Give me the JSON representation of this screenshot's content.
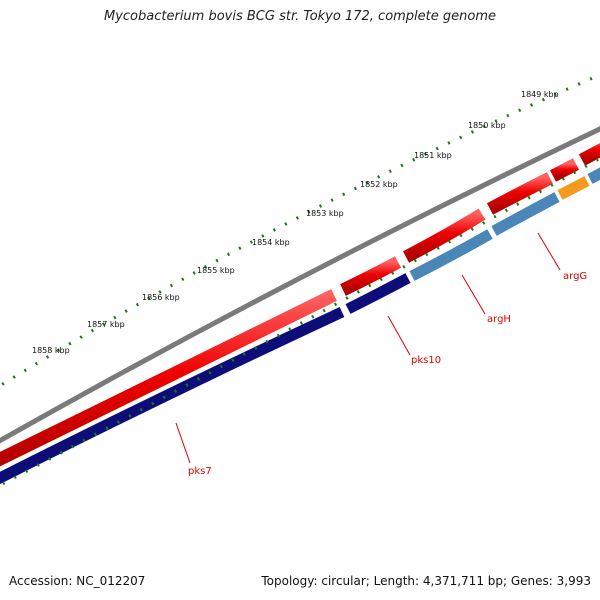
{
  "title": "Mycobacterium bovis BCG str. Tokyo 172, complete genome",
  "footer": {
    "accession": "Accession: NC_012207",
    "summary": "Topology: circular; Length: 4,371,711 bp; Genes: 3,993"
  },
  "ruler": {
    "unit": "kbp",
    "ticks": [
      "1849 kbp",
      "1850 kbp",
      "1851 kbp",
      "1852 kbp",
      "1853 kbp",
      "1854 kbp",
      "1855 kbp",
      "1856 kbp",
      "1857 kbp",
      "1858 kbp"
    ]
  },
  "genes": [
    {
      "name": "argG",
      "color": "#4a86b8"
    },
    {
      "name": "argH",
      "color": "#4a86b8"
    },
    {
      "name": "pks10",
      "color": "#0d0d7a"
    },
    {
      "name": "pks7",
      "color": "#0d0d7a"
    }
  ],
  "colors": {
    "backbone": "#7a7a7a",
    "forward_cds": "#ee0000",
    "reverse_cds": "#0d0d7a",
    "reverse_cds_light": "#4a86b8",
    "highlight": "#f59a1f",
    "tick": "#1a7a1a",
    "label_line": "#dd0000"
  }
}
